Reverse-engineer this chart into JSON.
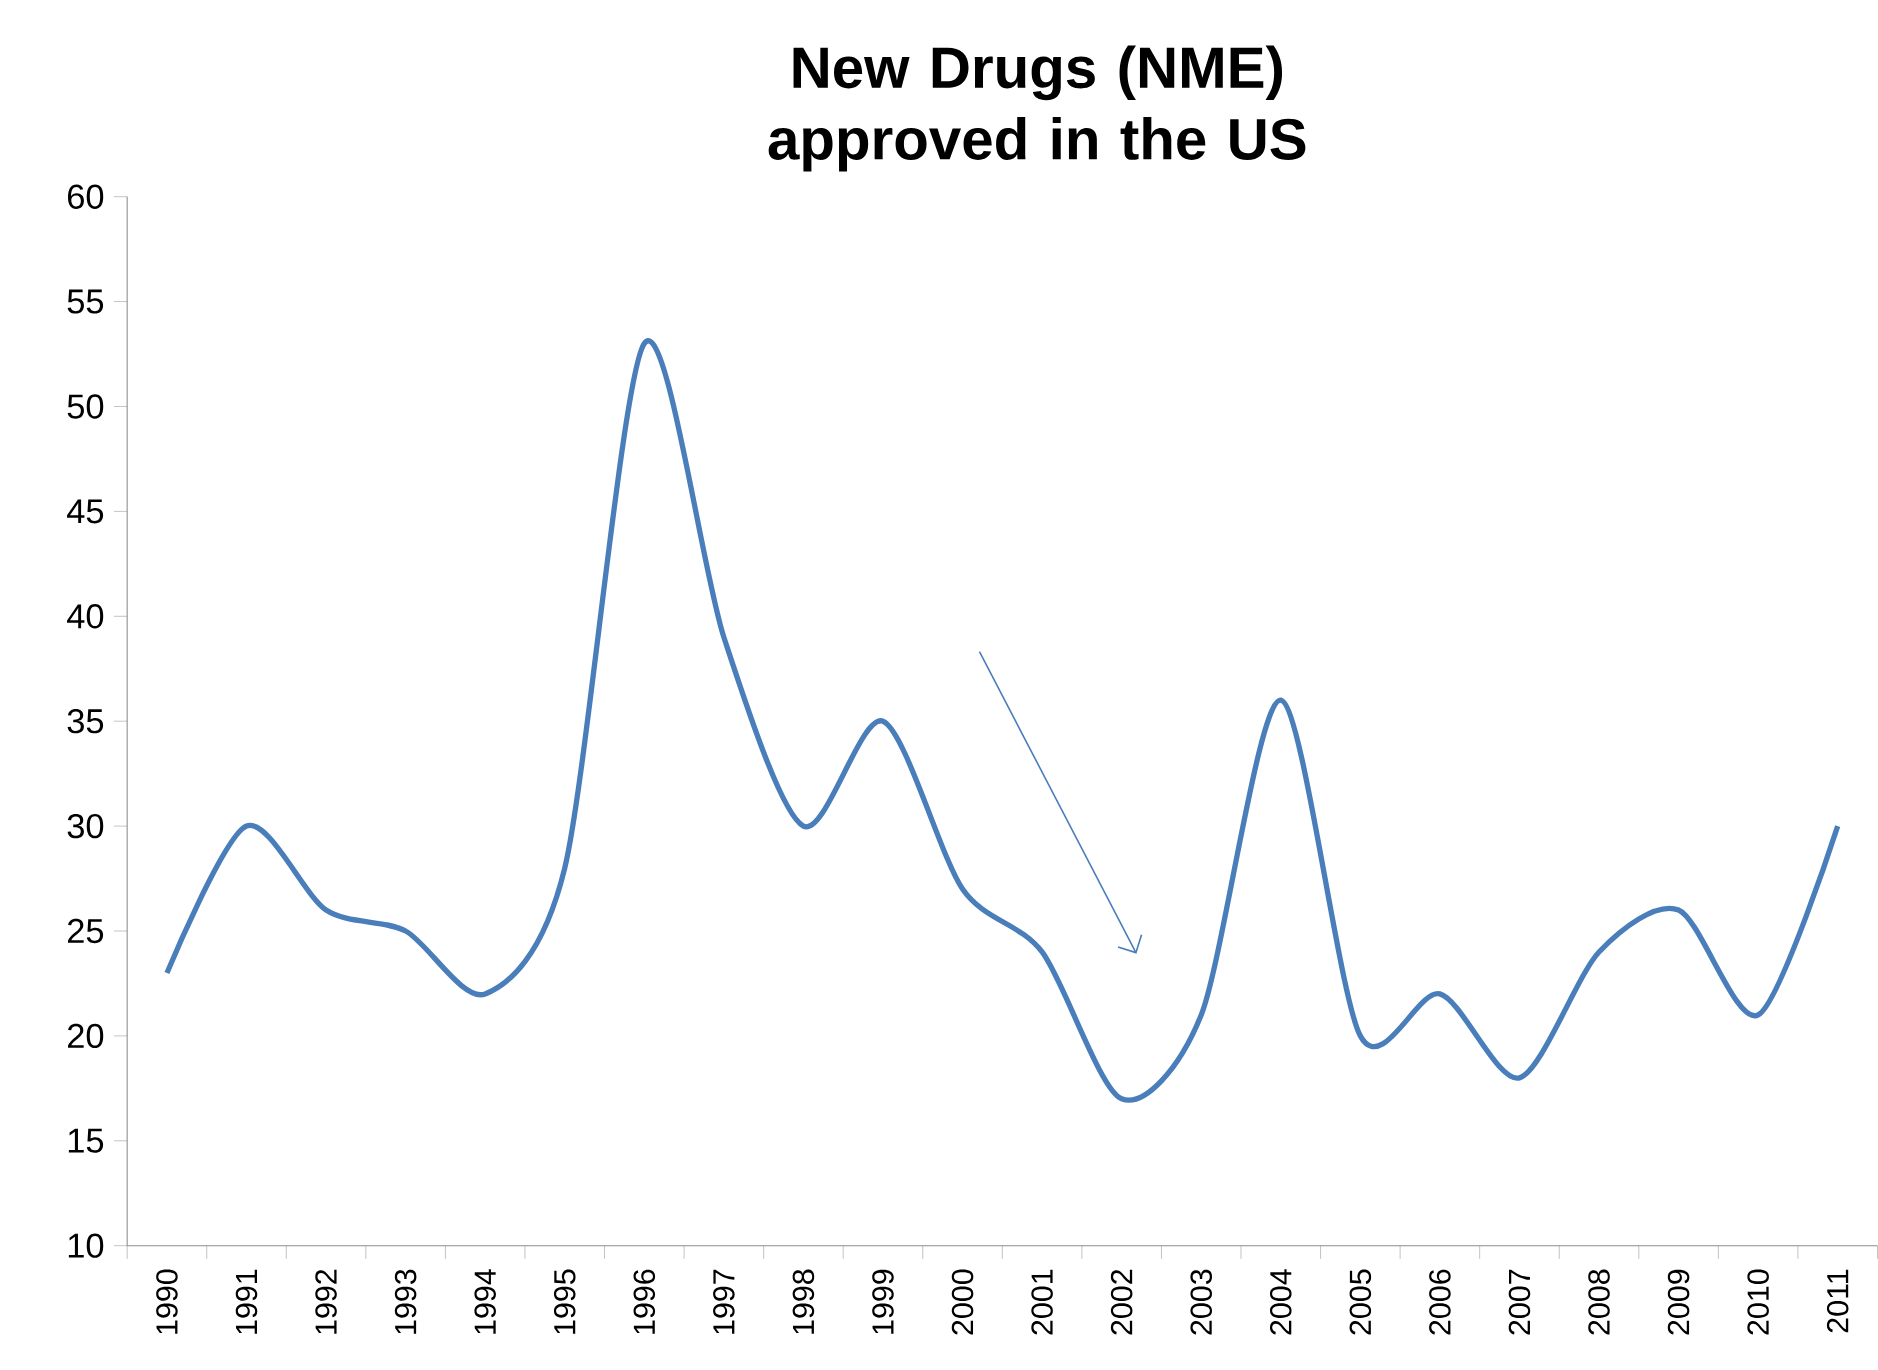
{
  "chart_data": {
    "type": "line",
    "title": "New Drugs (NME) approved in the US",
    "categories": [
      "1990",
      "1991",
      "1992",
      "1993",
      "1994",
      "1995",
      "1996",
      "1997",
      "1998",
      "1999",
      "2000",
      "2001",
      "2002",
      "2003",
      "2004",
      "2005",
      "2006",
      "2007",
      "2008",
      "2009",
      "2010",
      "2011"
    ],
    "values": [
      23,
      30,
      26,
      25,
      22,
      28,
      53,
      39,
      30,
      35,
      27,
      24,
      17,
      21,
      36,
      20,
      22,
      18,
      24,
      26,
      21,
      30
    ],
    "color": "#4a7ebb",
    "ylim": [
      10,
      60
    ],
    "yticks": [
      10,
      15,
      20,
      25,
      30,
      35,
      40,
      45,
      50,
      55,
      60
    ],
    "grid": false,
    "marker": "none",
    "line_style": "solid"
  }
}
